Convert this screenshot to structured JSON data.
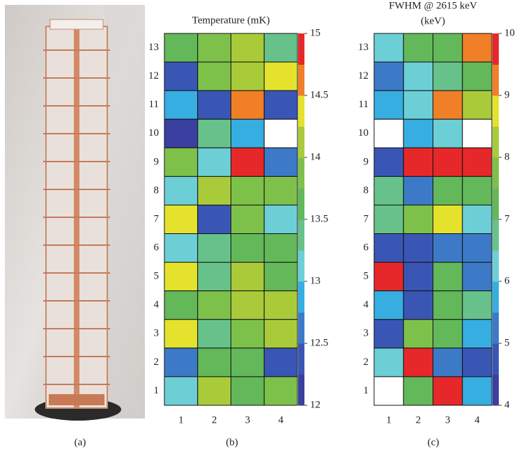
{
  "chart_data": [
    {
      "type": "heatmap",
      "title": "Temperature (mK)",
      "x_categories": [
        "1",
        "2",
        "3",
        "4"
      ],
      "y_categories": [
        "13",
        "12",
        "11",
        "10",
        "9",
        "8",
        "7",
        "6",
        "5",
        "4",
        "3",
        "2",
        "1"
      ],
      "values": [
        [
          13.6,
          13.8,
          14.1,
          13.4
        ],
        [
          12.4,
          13.8,
          14.1,
          14.4
        ],
        [
          12.9,
          12.4,
          14.6,
          12.4
        ],
        [
          12.1,
          13.4,
          12.9,
          null
        ],
        [
          13.9,
          13.1,
          14.9,
          12.6
        ],
        [
          13.1,
          14.1,
          13.9,
          13.9
        ],
        [
          14.3,
          12.4,
          13.9,
          13.1
        ],
        [
          13.1,
          13.4,
          13.6,
          13.6
        ],
        [
          14.4,
          13.4,
          14.1,
          13.6
        ],
        [
          13.6,
          13.8,
          14.1,
          14.1
        ],
        [
          14.3,
          13.4,
          13.8,
          14.1
        ],
        [
          12.6,
          13.6,
          13.6,
          12.4
        ],
        [
          13.1,
          14.1,
          13.6,
          13.8
        ]
      ],
      "clim": [
        12,
        15
      ],
      "cticks": [
        12,
        12.5,
        13,
        13.5,
        14,
        14.5,
        15
      ],
      "colors": [
        "#3b3f9f",
        "#3a56b5",
        "#3c7ac8",
        "#36aee2",
        "#6ccfd6",
        "#66c28a",
        "#63b85a",
        "#7dc14a",
        "#a9cb3a",
        "#e4e22c",
        "#f07f28",
        "#e6282a"
      ]
    },
    {
      "type": "heatmap",
      "title": [
        "FWHM @ 2615 keV",
        "(keV)"
      ],
      "x_categories": [
        "1",
        "2",
        "3",
        "4"
      ],
      "y_categories": [
        "13",
        "12",
        "11",
        "10",
        "9",
        "8",
        "7",
        "6",
        "5",
        "4",
        "3",
        "2",
        "1"
      ],
      "values": [
        [
          6.2,
          7.2,
          7.2,
          9.1
        ],
        [
          5.2,
          6.2,
          6.7,
          7.2
        ],
        [
          5.7,
          6.2,
          9.1,
          8.2
        ],
        [
          null,
          5.7,
          6.2,
          null
        ],
        [
          4.7,
          9.7,
          9.7,
          9.7
        ],
        [
          6.7,
          5.2,
          7.2,
          7.2
        ],
        [
          6.7,
          7.7,
          8.7,
          6.2
        ],
        [
          4.7,
          4.7,
          5.2,
          5.2
        ],
        [
          9.7,
          4.7,
          7.2,
          5.2
        ],
        [
          5.7,
          4.7,
          7.2,
          6.7
        ],
        [
          4.7,
          7.7,
          7.2,
          5.7
        ],
        [
          6.2,
          9.7,
          5.2,
          4.7
        ],
        [
          null,
          7.2,
          9.7,
          5.7
        ]
      ],
      "clim": [
        4,
        10
      ],
      "cticks": [
        4,
        5,
        6,
        7,
        8,
        9,
        10
      ],
      "colors": [
        "#3b3f9f",
        "#3a56b5",
        "#3c7ac8",
        "#36aee2",
        "#6ccfd6",
        "#66c28a",
        "#63b85a",
        "#7dc14a",
        "#a9cb3a",
        "#e4e22c",
        "#f07f28",
        "#e6282a"
      ]
    }
  ],
  "panel_labels": [
    "(a)",
    "(b)",
    "(c)"
  ]
}
